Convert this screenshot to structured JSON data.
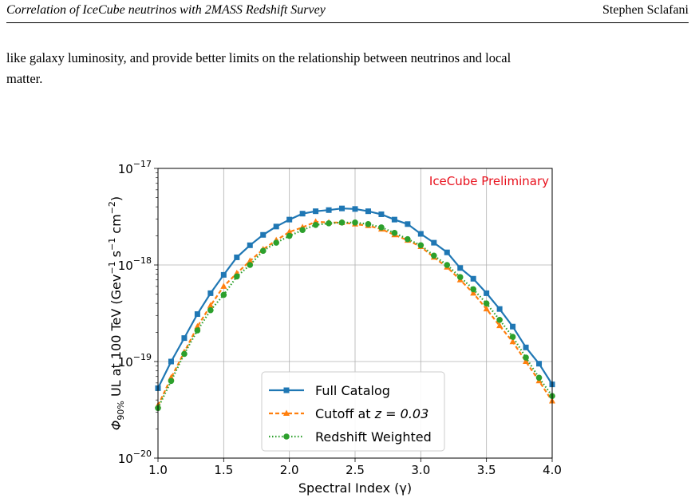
{
  "header": {
    "title": "Correlation of IceCube neutrinos with 2MASS Redshift Survey",
    "author": "Stephen Sclafani"
  },
  "body": {
    "line1": "like galaxy luminosity, and provide better limits on the relationship between neutrinos and local",
    "line2": "matter."
  },
  "chart_data": {
    "type": "line",
    "title": "",
    "annotation": "IceCube Preliminary",
    "xlabel": "Spectral Index (γ)",
    "ylabel_parts": [
      "Φ",
      "90%",
      " UL at 100 TeV (Gev",
      "−1",
      " s",
      "−1",
      " cm",
      "−2",
      ")"
    ],
    "xlim": [
      1.0,
      4.0
    ],
    "ylim": [
      1e-20,
      1e-17
    ],
    "yscale": "log",
    "grid": true,
    "legend_position": "lower-center",
    "x_ticks": [
      "1.0",
      "1.5",
      "2.0",
      "2.5",
      "3.0",
      "3.5",
      "4.0"
    ],
    "y_ticks": [
      {
        "base": "10",
        "exp": "−17",
        "value": 1e-17
      },
      {
        "base": "10",
        "exp": "−18",
        "value": 1e-18
      },
      {
        "base": "10",
        "exp": "−19",
        "value": 1e-19
      },
      {
        "base": "10",
        "exp": "−20",
        "value": 1e-20
      }
    ],
    "x": [
      1.0,
      1.1,
      1.2,
      1.3,
      1.4,
      1.5,
      1.6,
      1.7,
      1.8,
      1.9,
      2.0,
      2.1,
      2.2,
      2.3,
      2.4,
      2.5,
      2.6,
      2.7,
      2.8,
      2.9,
      3.0,
      3.1,
      3.2,
      3.3,
      3.4,
      3.5,
      3.6,
      3.7,
      3.8,
      3.9,
      4.0
    ],
    "series": [
      {
        "name": "Full Catalog",
        "color": "#1f77b4",
        "marker": "square",
        "linestyle": "solid",
        "values": [
          5.3e-20,
          1e-19,
          1.75e-19,
          3.1e-19,
          5.1e-19,
          7.9e-19,
          1.2e-18,
          1.6e-18,
          2.05e-18,
          2.5e-18,
          2.95e-18,
          3.4e-18,
          3.6e-18,
          3.7e-18,
          3.85e-18,
          3.8e-18,
          3.6e-18,
          3.35e-18,
          2.95e-18,
          2.65e-18,
          2.1e-18,
          1.7e-18,
          1.35e-18,
          9.3e-19,
          7.2e-19,
          5.1e-19,
          3.5e-19,
          2.3e-19,
          1.4e-19,
          9.5e-20,
          5.8e-20
        ]
      },
      {
        "name": "Cutoff at ",
        "name_math": "z = 0.03",
        "color": "#ff7f0e",
        "marker": "triangle",
        "linestyle": "dashed",
        "values": [
          3.5e-20,
          6.8e-20,
          1.25e-19,
          2.3e-19,
          3.8e-19,
          6e-19,
          8.2e-19,
          1.1e-18,
          1.45e-18,
          1.8e-18,
          2.2e-18,
          2.45e-18,
          2.8e-18,
          2.75e-18,
          2.75e-18,
          2.65e-18,
          2.55e-18,
          2.35e-18,
          2.05e-18,
          1.8e-18,
          1.55e-18,
          1.2e-18,
          9.5e-19,
          7e-19,
          5.1e-19,
          3.5e-19,
          2.35e-19,
          1.6e-19,
          1e-19,
          6.3e-20,
          3.9e-20
        ]
      },
      {
        "name": "Redshift Weighted",
        "color": "#2ca02c",
        "marker": "circle",
        "linestyle": "dotted",
        "values": [
          3.3e-20,
          6.3e-20,
          1.2e-19,
          2.1e-19,
          3.4e-19,
          4.9e-19,
          7.6e-19,
          1e-18,
          1.4e-18,
          1.7e-18,
          2e-18,
          2.3e-18,
          2.6e-18,
          2.7e-18,
          2.75e-18,
          2.75e-18,
          2.65e-18,
          2.45e-18,
          2.15e-18,
          1.85e-18,
          1.6e-18,
          1.25e-18,
          1e-18,
          7.5e-19,
          5.6e-19,
          4e-19,
          2.7e-19,
          1.8e-19,
          1.1e-19,
          6.8e-20,
          4.4e-20
        ]
      }
    ]
  }
}
